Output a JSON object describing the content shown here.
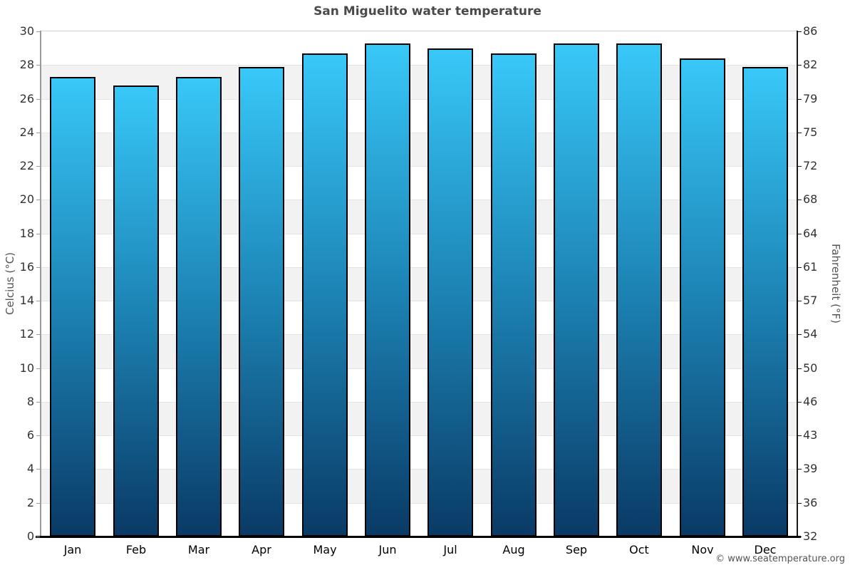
{
  "title": "San Miguelito water temperature",
  "footer": "© www.seatemperature.org",
  "colors": {
    "bar_gradient_top": "#38c8f8",
    "bar_gradient_mid": "#1d86b7",
    "bar_gradient_bottom": "#0a3a66",
    "bar_border": "#000000",
    "band_gray": "#f2f2f2",
    "band_white": "#ffffff",
    "gridline": "#e4e4e4",
    "axis_left": "#9a9a9a",
    "axis_right": "#1a1a1a",
    "axis_bottom": "#000000",
    "title_text": "#4a4a4a",
    "tick_text": "#333333"
  },
  "chart_data": {
    "type": "bar",
    "title": "San Miguelito water temperature",
    "categories": [
      "Jan",
      "Feb",
      "Mar",
      "Apr",
      "May",
      "Jun",
      "Jul",
      "Aug",
      "Sep",
      "Oct",
      "Nov",
      "Dec"
    ],
    "series": [
      {
        "name": "Water temperature (°C)",
        "values": [
          27.3,
          26.8,
          27.3,
          27.9,
          28.7,
          29.3,
          29.0,
          28.7,
          29.3,
          29.3,
          28.4,
          27.9
        ]
      },
      {
        "name": "Water temperature (°F)",
        "values": [
          81.1,
          80.2,
          81.1,
          82.2,
          83.7,
          84.7,
          84.2,
          83.7,
          84.7,
          84.7,
          83.1,
          82.2
        ]
      }
    ],
    "ylabel_left": "Celcius (°C)",
    "ylabel_right": "Fahrenheit (°F)",
    "ylim_left": [
      0,
      30
    ],
    "yticks_left": [
      30,
      28,
      26,
      24,
      22,
      20,
      18,
      16,
      14,
      12,
      10,
      8,
      6,
      4,
      2,
      0
    ],
    "yticks_right": [
      86,
      82,
      79,
      75,
      72,
      68,
      64,
      61,
      57,
      54,
      50,
      46,
      43,
      39,
      36,
      32
    ],
    "grid": "alternating-horizontal-bands",
    "legend": "none",
    "bar_border_px": 2
  }
}
